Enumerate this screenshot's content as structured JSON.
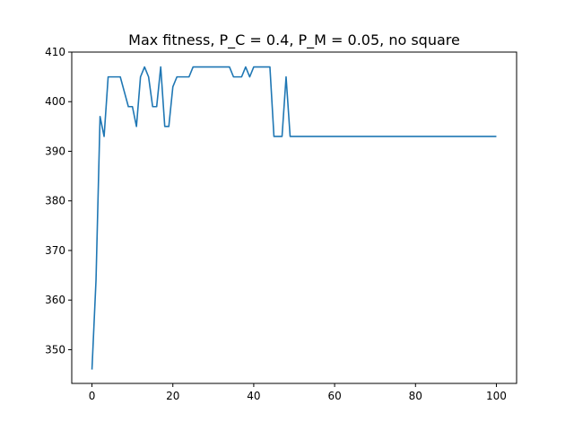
{
  "chart_data": {
    "type": "line",
    "title": "Max fitness, P_C = 0.4, P_M = 0.05, no square",
    "xlabel": "",
    "ylabel": "",
    "xlim": [
      -5,
      105
    ],
    "ylim": [
      343.2,
      410
    ],
    "xticks": [
      0,
      20,
      40,
      60,
      80,
      100
    ],
    "yticks": [
      350,
      360,
      370,
      380,
      390,
      400,
      410
    ],
    "grid": false,
    "color": "#1f77b4",
    "series": [
      {
        "x": [
          0,
          1,
          2,
          3,
          4,
          5,
          6,
          7,
          8,
          9,
          10,
          11,
          12,
          13,
          14,
          15,
          16,
          17,
          18,
          19,
          20,
          21,
          22,
          23,
          24,
          25,
          26,
          27,
          28,
          29,
          30,
          31,
          32,
          33,
          34,
          35,
          36,
          37,
          38,
          39,
          40,
          41,
          42,
          43,
          44,
          45,
          46,
          47,
          48,
          49,
          50,
          51,
          52,
          53,
          54,
          55,
          56,
          57,
          58,
          59,
          60,
          61,
          62,
          63,
          64,
          65,
          66,
          67,
          68,
          69,
          70,
          71,
          72,
          73,
          74,
          75,
          76,
          77,
          78,
          79,
          80,
          81,
          82,
          83,
          84,
          85,
          86,
          87,
          88,
          89,
          90,
          91,
          92,
          93,
          94,
          95,
          96,
          97,
          98,
          99,
          100
        ],
        "y": [
          346,
          364,
          397,
          393,
          405,
          405,
          405,
          405,
          402,
          399,
          399,
          395,
          405,
          407,
          405,
          399,
          399,
          407,
          395,
          395,
          403,
          405,
          405,
          405,
          405,
          407,
          407,
          407,
          407,
          407,
          407,
          407,
          407,
          407,
          407,
          405,
          405,
          405,
          407,
          405,
          407,
          407,
          407,
          407,
          407,
          393,
          393,
          393,
          405,
          393,
          393,
          393,
          393,
          393,
          393,
          393,
          393,
          393,
          393,
          393,
          393,
          393,
          393,
          393,
          393,
          393,
          393,
          393,
          393,
          393,
          393,
          393,
          393,
          393,
          393,
          393,
          393,
          393,
          393,
          393,
          393,
          393,
          393,
          393,
          393,
          393,
          393,
          393,
          393,
          393,
          393,
          393,
          393,
          393,
          393,
          393,
          393,
          393,
          393,
          393,
          393
        ]
      }
    ]
  }
}
